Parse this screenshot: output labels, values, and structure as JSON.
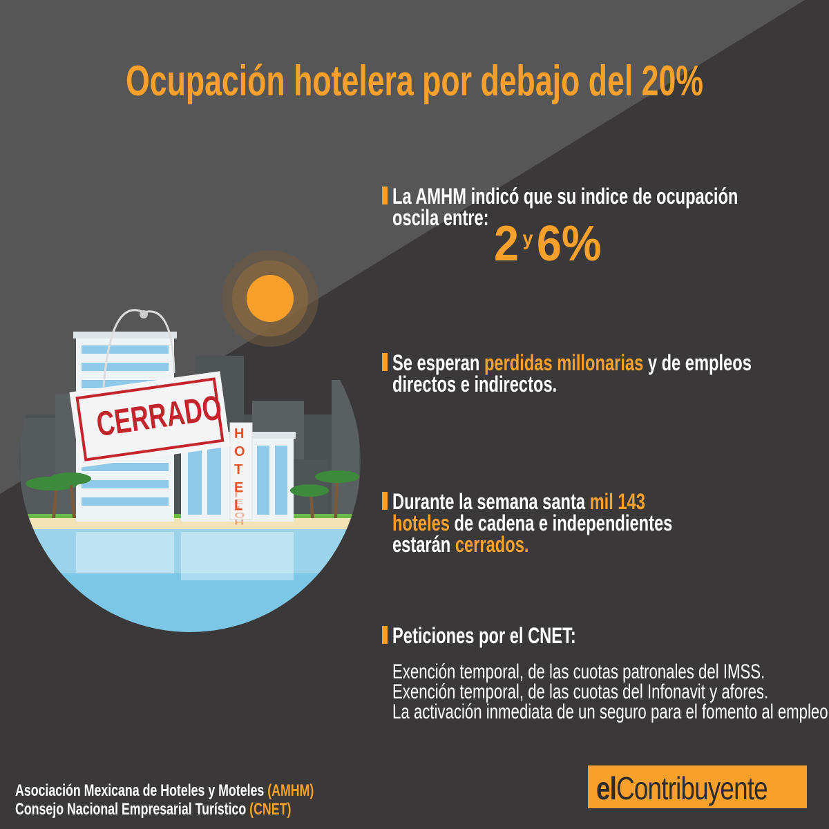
{
  "title": "Ocupación hotelera por debajo del 20%",
  "illustration": {
    "sign": "CERRADO",
    "hotel": "HOTEL"
  },
  "points": [
    {
      "lines": [
        [
          {
            "text": "La AMHM indicó que su indice de ocupación",
            "accent": false
          }
        ],
        [
          {
            "text": "oscila entre:",
            "accent": false
          }
        ]
      ],
      "range": {
        "low": "2",
        "word": "y",
        "high": "6%"
      }
    },
    {
      "lines": [
        [
          {
            "text": "Se esperan ",
            "accent": false
          },
          {
            "text": "perdidas millonarias",
            "accent": true
          },
          {
            "text": " y de empleos",
            "accent": false
          }
        ],
        [
          {
            "text": "directos e indirectos.",
            "accent": false
          }
        ]
      ]
    },
    {
      "lines": [
        [
          {
            "text": "Durante la semana santa ",
            "accent": false
          },
          {
            "text": "mil 143",
            "accent": true
          }
        ],
        [
          {
            "text": "hoteles",
            "accent": true
          },
          {
            "text": " de cadena e independientes",
            "accent": false
          }
        ],
        [
          {
            "text": "estarán ",
            "accent": false
          },
          {
            "text": "cerrados.",
            "accent": true
          }
        ]
      ]
    },
    {
      "lines": [
        [
          {
            "text": "Peticiones por el CNET:",
            "accent": false
          }
        ]
      ],
      "items": [
        "Exención temporal, de las cuotas patronales del IMSS.",
        "Exención temporal, de las cuotas del Infonavit y afores.",
        "La activación inmediata de un seguro para el fomento al empleo."
      ]
    }
  ],
  "sources": [
    [
      {
        "text": "Asociación Mexicana de Hoteles y Moteles ",
        "accent": false
      },
      {
        "text": "(AMHM)",
        "accent": true
      }
    ],
    [
      {
        "text": "Consejo Nacional Empresarial Turístico ",
        "accent": false
      },
      {
        "text": "(CNET)",
        "accent": true
      }
    ]
  ],
  "logo": {
    "prefix": "el",
    "name": "Contribuyente"
  }
}
